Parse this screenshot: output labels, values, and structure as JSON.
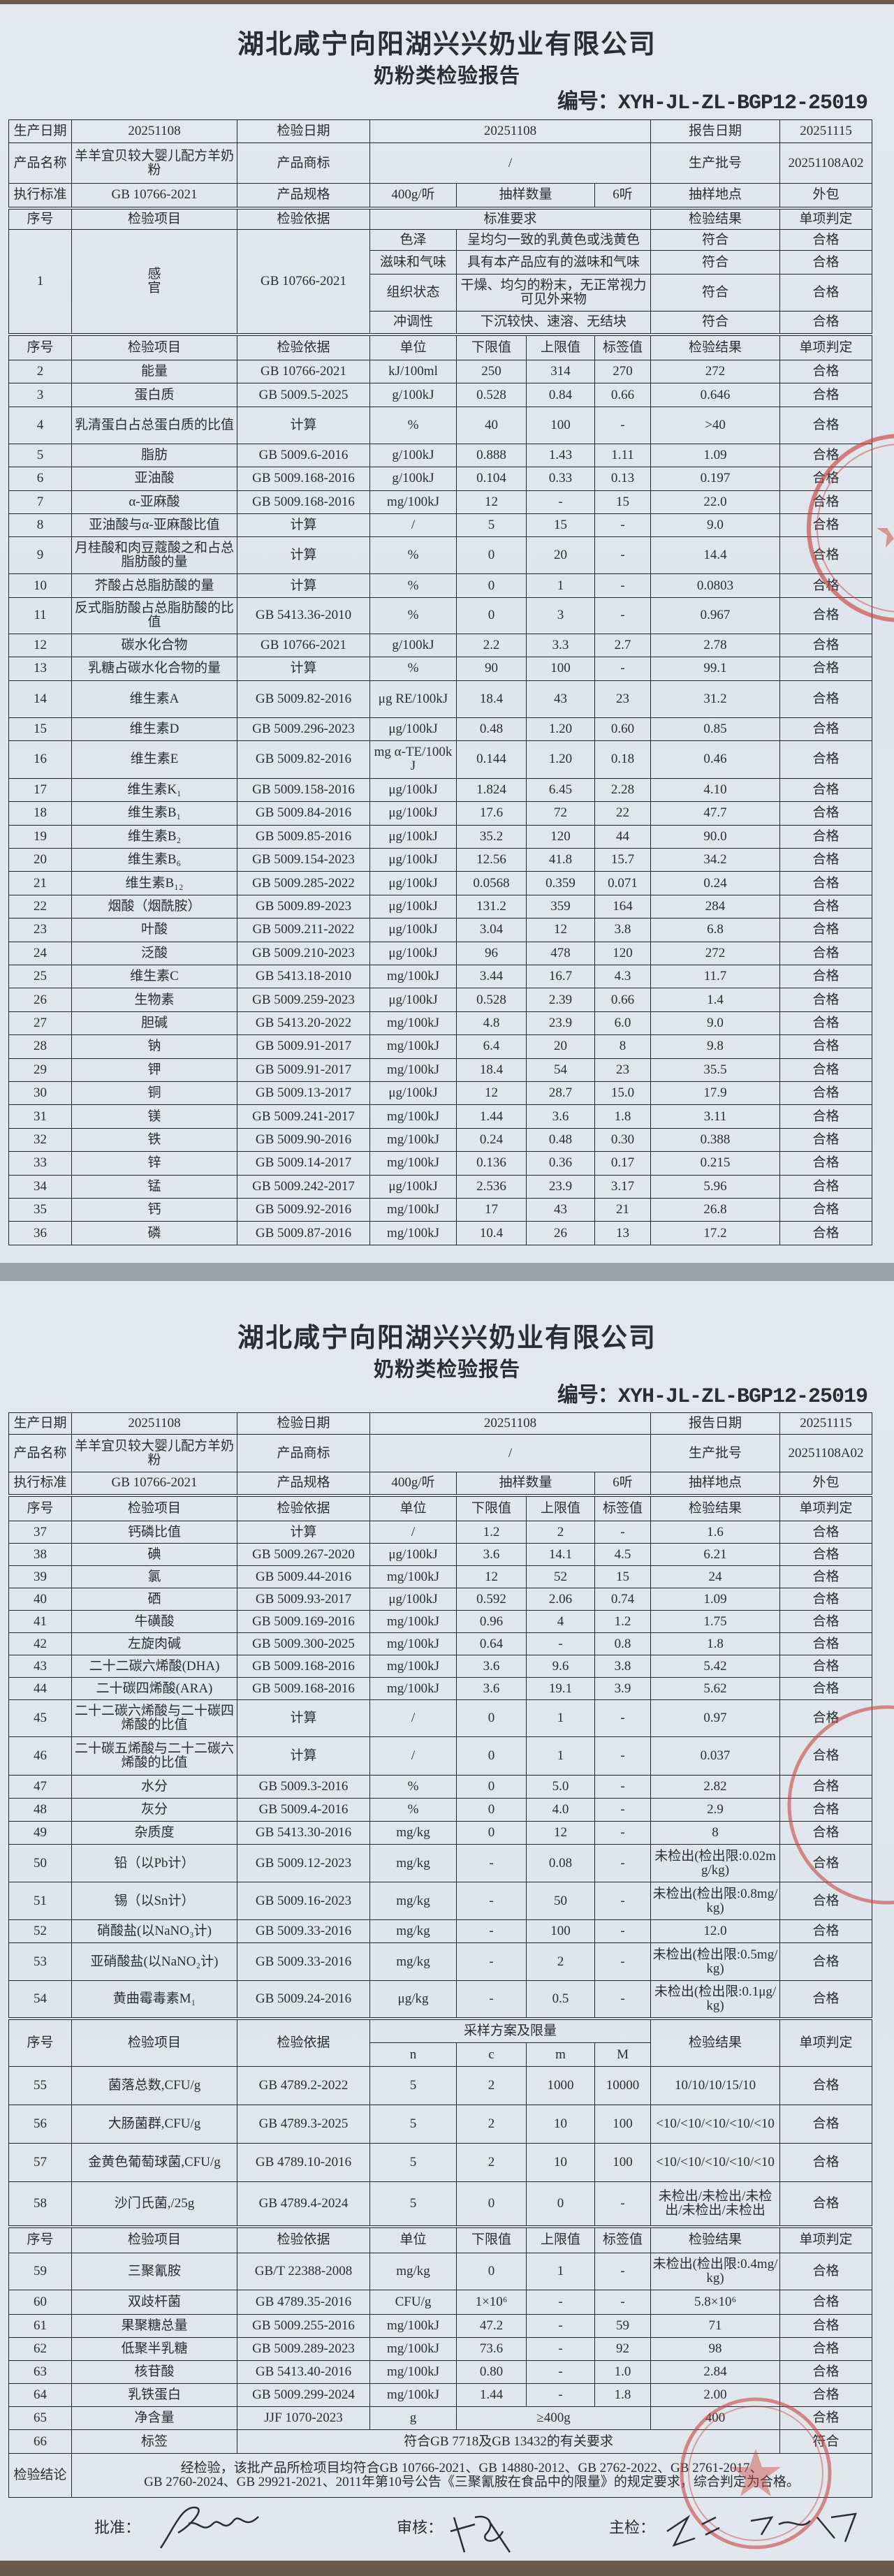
{
  "pages": [
    {
      "company": "湖北咸宁向阳湖兴兴奶业有限公司",
      "title": "奶粉类检验报告",
      "code": "编号：XYH-JL-ZL-BGP12-25019",
      "info": {
        "prod_date_label": "生产日期",
        "prod_date": "20251108",
        "test_date_label": "检验日期",
        "test_date": "20251108",
        "report_date_label": "报告日期",
        "report_date": "20251115",
        "name_label": "产品名称",
        "name": "羊羊宜贝较大婴儿配方羊奶粉",
        "brand_label": "产品商标",
        "brand": "/",
        "batch_label": "生产批号",
        "batch": "20251108A02",
        "std_label": "执行标准",
        "std": "GB 10766-2021",
        "spec_label": "产品规格",
        "spec": "400g/听",
        "qty_label": "抽样数量",
        "qty": "6听",
        "place_label": "抽样地点",
        "place": "外包"
      },
      "sensory_header": [
        "序号",
        "检验项目",
        "检验依据",
        "标准要求",
        "检验结果",
        "单项判定"
      ],
      "sensory": {
        "no": "1",
        "item": "感\n官",
        "basis": "GB 10766-2021",
        "rows": [
          [
            "色泽",
            "呈均匀一致的乳黄色或浅黄色",
            "符合",
            "合格"
          ],
          [
            "滋味和气味",
            "具有本产品应有的滋味和气味",
            "符合",
            "合格"
          ],
          [
            "组织状态",
            "干燥、均匀的粉末，无正常视力可见外来物",
            "符合",
            "合格"
          ],
          [
            "冲调性",
            "下沉较快、速溶、无结块",
            "符合",
            "合格"
          ]
        ]
      },
      "header": [
        "序号",
        "检验项目",
        "检验依据",
        "单位",
        "下限值",
        "上限值",
        "标签值",
        "检验结果",
        "单项判定"
      ],
      "rows": [
        [
          "2",
          "能量",
          "GB 10766-2021",
          "kJ/100ml",
          "250",
          "314",
          "270",
          "272",
          "合格"
        ],
        [
          "3",
          "蛋白质",
          "GB 5009.5-2025",
          "g/100kJ",
          "0.528",
          "0.84",
          "0.66",
          "0.646",
          "合格"
        ],
        [
          "4",
          "乳清蛋白占总蛋白质的比值",
          "计算",
          "%",
          "40",
          "100",
          "-",
          ">40",
          "合格"
        ],
        [
          "5",
          "脂肪",
          "GB 5009.6-2016",
          "g/100kJ",
          "0.888",
          "1.43",
          "1.11",
          "1.09",
          "合格"
        ],
        [
          "6",
          "亚油酸",
          "GB 5009.168-2016",
          "g/100kJ",
          "0.104",
          "0.33",
          "0.13",
          "0.197",
          "合格"
        ],
        [
          "7",
          "α-亚麻酸",
          "GB 5009.168-2016",
          "mg/100kJ",
          "12",
          "-",
          "15",
          "22.0",
          "合格"
        ],
        [
          "8",
          "亚油酸与α-亚麻酸比值",
          "计算",
          "/",
          "5",
          "15",
          "-",
          "9.0",
          "合格"
        ],
        [
          "9",
          "月桂酸和肉豆蔻酸之和占总脂肪酸的量",
          "计算",
          "%",
          "0",
          "20",
          "-",
          "14.4",
          "合格"
        ],
        [
          "10",
          "芥酸占总脂肪酸的量",
          "计算",
          "%",
          "0",
          "1",
          "-",
          "0.0803",
          "合格"
        ],
        [
          "11",
          "反式脂肪酸占总脂肪酸的比值",
          "GB 5413.36-2010",
          "%",
          "0",
          "3",
          "-",
          "0.967",
          "合格"
        ],
        [
          "12",
          "碳水化合物",
          "GB 10766-2021",
          "g/100kJ",
          "2.2",
          "3.3",
          "2.7",
          "2.78",
          "合格"
        ],
        [
          "13",
          "乳糖占碳水化合物的量",
          "计算",
          "%",
          "90",
          "100",
          "-",
          "99.1",
          "合格"
        ],
        [
          "14",
          "维生素A",
          "GB 5009.82-2016",
          "μg RE/100kJ",
          "18.4",
          "43",
          "23",
          "31.2",
          "合格"
        ],
        [
          "15",
          "维生素D",
          "GB 5009.296-2023",
          "μg/100kJ",
          "0.48",
          "1.20",
          "0.60",
          "0.85",
          "合格"
        ],
        [
          "16",
          "维生素E",
          "GB 5009.82-2016",
          "mg α-TE/100kJ",
          "0.144",
          "1.20",
          "0.18",
          "0.46",
          "合格"
        ],
        [
          "17",
          "维生素K₁",
          "GB 5009.158-2016",
          "μg/100kJ",
          "1.824",
          "6.45",
          "2.28",
          "4.10",
          "合格"
        ],
        [
          "18",
          "维生素B₁",
          "GB 5009.84-2016",
          "μg/100kJ",
          "17.6",
          "72",
          "22",
          "47.7",
          "合格"
        ],
        [
          "19",
          "维生素B₂",
          "GB 5009.85-2016",
          "μg/100kJ",
          "35.2",
          "120",
          "44",
          "90.0",
          "合格"
        ],
        [
          "20",
          "维生素B₆",
          "GB 5009.154-2023",
          "μg/100kJ",
          "12.56",
          "41.8",
          "15.7",
          "34.2",
          "合格"
        ],
        [
          "21",
          "维生素B₁₂",
          "GB 5009.285-2022",
          "μg/100kJ",
          "0.0568",
          "0.359",
          "0.071",
          "0.24",
          "合格"
        ],
        [
          "22",
          "烟酸（烟酰胺）",
          "GB 5009.89-2023",
          "μg/100kJ",
          "131.2",
          "359",
          "164",
          "284",
          "合格"
        ],
        [
          "23",
          "叶酸",
          "GB 5009.211-2022",
          "μg/100kJ",
          "3.04",
          "12",
          "3.8",
          "6.8",
          "合格"
        ],
        [
          "24",
          "泛酸",
          "GB 5009.210-2023",
          "μg/100kJ",
          "96",
          "478",
          "120",
          "272",
          "合格"
        ],
        [
          "25",
          "维生素C",
          "GB 5413.18-2010",
          "mg/100kJ",
          "3.44",
          "16.7",
          "4.3",
          "11.7",
          "合格"
        ],
        [
          "26",
          "生物素",
          "GB 5009.259-2023",
          "μg/100kJ",
          "0.528",
          "2.39",
          "0.66",
          "1.4",
          "合格"
        ],
        [
          "27",
          "胆碱",
          "GB 5413.20-2022",
          "mg/100kJ",
          "4.8",
          "23.9",
          "6.0",
          "9.0",
          "合格"
        ],
        [
          "28",
          "钠",
          "GB 5009.91-2017",
          "mg/100kJ",
          "6.4",
          "20",
          "8",
          "9.8",
          "合格"
        ],
        [
          "29",
          "钾",
          "GB 5009.91-2017",
          "mg/100kJ",
          "18.4",
          "54",
          "23",
          "35.5",
          "合格"
        ],
        [
          "30",
          "铜",
          "GB 5009.13-2017",
          "μg/100kJ",
          "12",
          "28.7",
          "15.0",
          "17.9",
          "合格"
        ],
        [
          "31",
          "镁",
          "GB 5009.241-2017",
          "mg/100kJ",
          "1.44",
          "3.6",
          "1.8",
          "3.11",
          "合格"
        ],
        [
          "32",
          "铁",
          "GB 5009.90-2016",
          "mg/100kJ",
          "0.24",
          "0.48",
          "0.30",
          "0.388",
          "合格"
        ],
        [
          "33",
          "锌",
          "GB 5009.14-2017",
          "mg/100kJ",
          "0.136",
          "0.36",
          "0.17",
          "0.215",
          "合格"
        ],
        [
          "34",
          "锰",
          "GB 5009.242-2017",
          "μg/100kJ",
          "2.536",
          "23.9",
          "3.17",
          "5.96",
          "合格"
        ],
        [
          "35",
          "钙",
          "GB 5009.92-2016",
          "mg/100kJ",
          "17",
          "43",
          "21",
          "26.8",
          "合格"
        ],
        [
          "36",
          "磷",
          "GB 5009.87-2016",
          "mg/100kJ",
          "10.4",
          "26",
          "13",
          "17.2",
          "合格"
        ]
      ]
    },
    {
      "company": "湖北咸宁向阳湖兴兴奶业有限公司",
      "title": "奶粉类检验报告",
      "code": "编号：XYH-JL-ZL-BGP12-25019",
      "info": {
        "prod_date_label": "生产日期",
        "prod_date": "20251108",
        "test_date_label": "检验日期",
        "test_date": "20251108",
        "report_date_label": "报告日期",
        "report_date": "20251115",
        "name_label": "产品名称",
        "name": "羊羊宜贝较大婴儿配方羊奶粉",
        "brand_label": "产品商标",
        "brand": "/",
        "batch_label": "生产批号",
        "batch": "20251108A02",
        "std_label": "执行标准",
        "std": "GB 10766-2021",
        "spec_label": "产品规格",
        "spec": "400g/听",
        "qty_label": "抽样数量",
        "qty": "6听",
        "place_label": "抽样地点",
        "place": "外包"
      },
      "header": [
        "序号",
        "检验项目",
        "检验依据",
        "单位",
        "下限值",
        "上限值",
        "标签值",
        "检验结果",
        "单项判定"
      ],
      "rows": [
        [
          "37",
          "钙磷比值",
          "计算",
          "/",
          "1.2",
          "2",
          "-",
          "1.6",
          "合格"
        ],
        [
          "38",
          "碘",
          "GB 5009.267-2020",
          "μg/100kJ",
          "3.6",
          "14.1",
          "4.5",
          "6.21",
          "合格"
        ],
        [
          "39",
          "氯",
          "GB 5009.44-2016",
          "mg/100kJ",
          "12",
          "52",
          "15",
          "24",
          "合格"
        ],
        [
          "40",
          "硒",
          "GB 5009.93-2017",
          "μg/100kJ",
          "0.592",
          "2.06",
          "0.74",
          "1.09",
          "合格"
        ],
        [
          "41",
          "牛磺酸",
          "GB 5009.169-2016",
          "mg/100kJ",
          "0.96",
          "4",
          "1.2",
          "1.75",
          "合格"
        ],
        [
          "42",
          "左旋肉碱",
          "GB 5009.300-2025",
          "mg/100kJ",
          "0.64",
          "-",
          "0.8",
          "1.8",
          "合格"
        ],
        [
          "43",
          "二十二碳六烯酸(DHA)",
          "GB 5009.168-2016",
          "mg/100kJ",
          "3.6",
          "9.6",
          "3.8",
          "5.42",
          "合格"
        ],
        [
          "44",
          "二十碳四烯酸(ARA)",
          "GB 5009.168-2016",
          "mg/100kJ",
          "3.6",
          "19.1",
          "3.9",
          "5.62",
          "合格"
        ],
        [
          "45",
          "二十二碳六烯酸与二十碳四烯酸的比值",
          "计算",
          "/",
          "0",
          "1",
          "-",
          "0.97",
          "合格"
        ],
        [
          "46",
          "二十碳五烯酸与二十二碳六烯酸的比值",
          "计算",
          "/",
          "0",
          "1",
          "-",
          "0.037",
          "合格"
        ],
        [
          "47",
          "水分",
          "GB 5009.3-2016",
          "%",
          "0",
          "5.0",
          "-",
          "2.82",
          "合格"
        ],
        [
          "48",
          "灰分",
          "GB 5009.4-2016",
          "%",
          "0",
          "4.0",
          "-",
          "2.9",
          "合格"
        ],
        [
          "49",
          "杂质度",
          "GB 5413.30-2016",
          "mg/kg",
          "0",
          "12",
          "-",
          "8",
          "合格"
        ],
        [
          "50",
          "铅（以Pb计）",
          "GB 5009.12-2023",
          "mg/kg",
          "-",
          "0.08",
          "-",
          "未检出(检出限:0.02mg/kg)",
          "合格"
        ],
        [
          "51",
          "锡（以Sn计）",
          "GB 5009.16-2023",
          "mg/kg",
          "-",
          "50",
          "-",
          "未检出(检出限:0.8mg/kg)",
          "合格"
        ],
        [
          "52",
          "硝酸盐(以NaNO₃计)",
          "GB 5009.33-2016",
          "mg/kg",
          "-",
          "100",
          "-",
          "12.0",
          "合格"
        ],
        [
          "53",
          "亚硝酸盐(以NaNO₂计)",
          "GB 5009.33-2016",
          "mg/kg",
          "-",
          "2",
          "-",
          "未检出(检出限:0.5mg/kg)",
          "合格"
        ],
        [
          "54",
          "黄曲霉毒素M₁",
          "GB 5009.24-2016",
          "μg/kg",
          "-",
          "0.5",
          "-",
          "未检出(检出限:0.1μg/kg)",
          "合格"
        ]
      ],
      "micro_header": {
        "no": "序号",
        "item": "检验项目",
        "basis": "检验依据",
        "plan": "采样方案及限量",
        "n": "n",
        "c": "c",
        "m": "m",
        "M": "M",
        "result": "检验结果",
        "judgment": "单项判定"
      },
      "micro_rows": [
        [
          "55",
          "菌落总数,CFU/g",
          "GB 4789.2-2022",
          "5",
          "2",
          "1000",
          "10000",
          "10/10/10/15/10",
          "合格"
        ],
        [
          "56",
          "大肠菌群,CFU/g",
          "GB 4789.3-2025",
          "5",
          "2",
          "10",
          "100",
          "<10/<10/<10/<10/<10",
          "合格"
        ],
        [
          "57",
          "金黄色葡萄球菌,CFU/g",
          "GB 4789.10-2016",
          "5",
          "2",
          "10",
          "100",
          "<10/<10/<10/<10/<10",
          "合格"
        ],
        [
          "58",
          "沙门氏菌,/25g",
          "GB 4789.4-2024",
          "5",
          "0",
          "0",
          "-",
          "未检出/未检出/未检出/未检出/未检出",
          "合格"
        ]
      ],
      "header2": [
        "序号",
        "检验项目",
        "检验依据",
        "单位",
        "下限值",
        "上限值",
        "标签值",
        "检验结果",
        "单项判定"
      ],
      "rows2": [
        [
          "59",
          "三聚氰胺",
          "GB/T 22388-2008",
          "mg/kg",
          "0",
          "1",
          "-",
          "未检出(检出限:0.4mg/kg)",
          "合格"
        ],
        [
          "60",
          "双歧杆菌",
          "GB 4789.35-2016",
          "CFU/g",
          "1×10⁶",
          "-",
          "-",
          "5.8×10⁶",
          "合格"
        ],
        [
          "61",
          "果聚糖总量",
          "GB 5009.255-2016",
          "mg/100kJ",
          "47.2",
          "-",
          "59",
          "71",
          "合格"
        ],
        [
          "62",
          "低聚半乳糖",
          "GB 5009.289-2023",
          "mg/100kJ",
          "73.6",
          "-",
          "92",
          "98",
          "合格"
        ],
        [
          "63",
          "核苷酸",
          "GB 5413.40-2016",
          "mg/100kJ",
          "0.80",
          "-",
          "1.0",
          "2.84",
          "合格"
        ],
        [
          "64",
          "乳铁蛋白",
          "GB 5009.299-2024",
          "mg/100kJ",
          "1.44",
          "-",
          "1.8",
          "2.00",
          "合格"
        ]
      ],
      "net": {
        "no": "65",
        "item": "净含量",
        "basis": "JJF 1070-2023",
        "unit": "g",
        "req": "≥400g",
        "result": "400",
        "judgment": "合格"
      },
      "label_row": {
        "no": "66",
        "item": "标签",
        "req": "符合GB 7718及GB 13432的有关要求",
        "judgment": "符合"
      },
      "conclusion": {
        "label": "检验结论",
        "text": "经检验，该批产品所检项目均符合GB 10766-2021、GB 14880-2012、GB 2762-2022、GB 2761-2017、\nGB 2760-2024、GB 29921-2021、2011年第10号公告《三聚氰胺在食品中的限量》的规定要求，综合判定为合格。"
      },
      "signatures": {
        "approve_label": "批准：",
        "review_label": "审核：",
        "inspect_label": "主检："
      }
    }
  ],
  "colors": {
    "paper": "#dfe5ec",
    "ink": "#2a2d33",
    "stamp": "#c8453f",
    "desk": "#6b5a4a"
  }
}
